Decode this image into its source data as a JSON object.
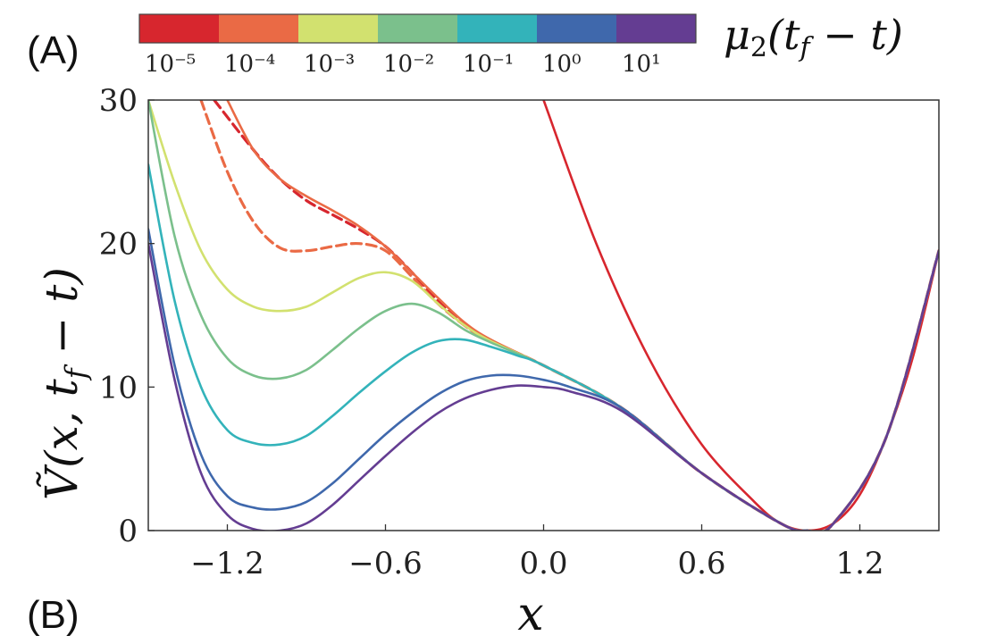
{
  "panel_labels": {
    "top": "(A)",
    "bottom": "(B)"
  },
  "colorbar": {
    "label": "μ2(tf − t)",
    "colors": [
      "#d7262e",
      "#ea6a45",
      "#d2e16f",
      "#7bc08c",
      "#33b3ba",
      "#3f68ac",
      "#643d92"
    ],
    "tick_labels": [
      "10⁻⁵",
      "10⁻⁴",
      "10⁻³",
      "10⁻²",
      "10⁻¹",
      "10⁰",
      "10¹"
    ]
  },
  "chart_data": {
    "type": "line",
    "title": "",
    "xlabel": "x",
    "ylabel": "Ṽ(x, tf − t)",
    "xlim": [
      -1.5,
      1.5
    ],
    "ylim": [
      0,
      30
    ],
    "xticks": [
      -1.2,
      -0.6,
      0.0,
      0.6,
      1.2
    ],
    "xtick_labels": [
      "−1.2",
      "−0.6",
      "0.0",
      "0.6",
      "1.2"
    ],
    "yticks": [
      0,
      10,
      20,
      30
    ],
    "ytick_labels": [
      "0",
      "10",
      "20",
      "30"
    ],
    "grid": false,
    "series": [
      {
        "name": "10⁻⁵",
        "color": "#d7262e",
        "style": "solid",
        "x": [
          0.0,
          0.2,
          0.4,
          0.6,
          0.8,
          0.9,
          1.0,
          1.1,
          1.2,
          1.3,
          1.4,
          1.5
        ],
        "y": [
          30,
          20,
          12,
          6,
          2,
          0.5,
          0,
          0.5,
          2.5,
          6.5,
          12,
          19.5
        ]
      },
      {
        "name": "10⁻⁵",
        "color": "#d7262e",
        "style": "dashed",
        "x": [
          -1.25,
          -1.1,
          -1.0,
          -0.9,
          -0.8,
          -0.7,
          -0.6,
          -0.5,
          -0.4,
          -0.3,
          -0.2,
          0.0,
          0.3,
          0.6,
          0.9,
          1.0,
          1.1,
          1.3,
          1.5
        ],
        "y": [
          30,
          26.5,
          24.5,
          23,
          22,
          21,
          19.8,
          18,
          16,
          14.3,
          13.2,
          11.5,
          8.5,
          4,
          0.5,
          0,
          0.5,
          6.5,
          19.5
        ]
      },
      {
        "name": "10⁻⁴",
        "color": "#ea6a45",
        "style": "dashed",
        "x": [
          -1.3,
          -1.2,
          -1.1,
          -1.0,
          -0.9,
          -0.8,
          -0.7,
          -0.6,
          -0.5,
          -0.4,
          -0.3,
          -0.2,
          0.0,
          0.3,
          0.6,
          0.9,
          1.0,
          1.1,
          1.3,
          1.5
        ],
        "y": [
          30,
          25,
          21.5,
          19.7,
          19.5,
          19.8,
          20,
          19.5,
          17.7,
          15.8,
          14.3,
          13.2,
          11.5,
          8.5,
          4,
          0.5,
          0,
          0.5,
          6.5,
          19.5
        ]
      },
      {
        "name": "10⁻⁴",
        "color": "#ea6a45",
        "style": "solid",
        "x": [
          -1.2,
          -1.1,
          -1.0,
          -0.9,
          -0.8,
          -0.7,
          -0.6,
          -0.5,
          -0.4,
          -0.3,
          -0.2,
          0.0,
          0.3,
          0.6,
          0.9,
          1.0,
          1.1,
          1.3,
          1.5
        ],
        "y": [
          30,
          26.5,
          24.5,
          23.3,
          22.3,
          21.2,
          19.8,
          18,
          16.2,
          14.5,
          13.3,
          11.5,
          8.5,
          4,
          0.5,
          0,
          0.5,
          6.5,
          19.5
        ]
      },
      {
        "name": "10⁻³",
        "color": "#d2e16f",
        "style": "solid",
        "x": [
          -1.5,
          -1.4,
          -1.3,
          -1.2,
          -1.1,
          -1.0,
          -0.9,
          -0.8,
          -0.7,
          -0.6,
          -0.5,
          -0.4,
          -0.3,
          -0.2,
          0.0,
          0.3,
          0.6,
          0.9,
          1.0,
          1.1,
          1.3,
          1.5
        ],
        "y": [
          30,
          24.2,
          19.5,
          16.8,
          15.6,
          15.3,
          15.6,
          16.6,
          17.6,
          18,
          17.4,
          15.8,
          14.3,
          13.2,
          11.5,
          8.5,
          4,
          0.5,
          0,
          0.5,
          6.5,
          19.5
        ]
      },
      {
        "name": "10⁻²",
        "color": "#7bc08c",
        "style": "solid",
        "x": [
          -1.5,
          -1.4,
          -1.3,
          -1.2,
          -1.1,
          -1.0,
          -0.9,
          -0.8,
          -0.7,
          -0.6,
          -0.5,
          -0.4,
          -0.3,
          -0.2,
          0.0,
          0.3,
          0.6,
          0.9,
          1.0,
          1.1,
          1.3,
          1.5
        ],
        "y": [
          30,
          20.5,
          15,
          12,
          10.8,
          10.6,
          11.2,
          12.6,
          14.1,
          15.3,
          15.8,
          15.2,
          14,
          13.1,
          11.5,
          8.5,
          4,
          0.5,
          0,
          0.5,
          6.5,
          19.5
        ]
      },
      {
        "name": "10⁻¹",
        "color": "#33b3ba",
        "style": "solid",
        "x": [
          -1.5,
          -1.4,
          -1.3,
          -1.2,
          -1.1,
          -1.0,
          -0.9,
          -0.8,
          -0.7,
          -0.6,
          -0.5,
          -0.4,
          -0.3,
          -0.2,
          -0.1,
          0.0,
          0.3,
          0.6,
          0.9,
          1.0,
          1.1,
          1.3,
          1.5
        ],
        "y": [
          25.5,
          16,
          10,
          7,
          6.1,
          6,
          6.6,
          8,
          9.6,
          11.1,
          12.4,
          13.2,
          13.3,
          12.8,
          12.2,
          11.5,
          8.5,
          4,
          0.5,
          0,
          0.5,
          6.5,
          19.5
        ]
      },
      {
        "name": "10⁰",
        "color": "#3f68ac",
        "style": "solid",
        "x": [
          -1.5,
          -1.4,
          -1.3,
          -1.2,
          -1.1,
          -1.0,
          -0.9,
          -0.8,
          -0.7,
          -0.6,
          -0.5,
          -0.4,
          -0.3,
          -0.2,
          -0.1,
          0.0,
          0.1,
          0.3,
          0.6,
          0.9,
          1.0,
          1.1,
          1.3,
          1.5
        ],
        "y": [
          21,
          11.5,
          5.3,
          2.4,
          1.6,
          1.5,
          2,
          3.3,
          5,
          6.7,
          8.2,
          9.5,
          10.4,
          10.8,
          10.8,
          10.5,
          10,
          8.5,
          4,
          0.5,
          0,
          0.5,
          6.5,
          19.5
        ]
      },
      {
        "name": "10¹",
        "color": "#643d92",
        "style": "solid",
        "x": [
          -1.5,
          -1.4,
          -1.3,
          -1.2,
          -1.1,
          -1.0,
          -0.9,
          -0.8,
          -0.7,
          -0.6,
          -0.5,
          -0.4,
          -0.3,
          -0.2,
          -0.1,
          0.0,
          0.1,
          0.3,
          0.6,
          0.9,
          1.0,
          1.1,
          1.3,
          1.5
        ],
        "y": [
          20,
          10.5,
          4,
          1.1,
          0.1,
          0,
          0.5,
          1.8,
          3.5,
          5.2,
          6.8,
          8.2,
          9.2,
          9.8,
          10.1,
          10,
          9.7,
          8.3,
          4,
          0.5,
          0,
          0.5,
          6.5,
          19.5
        ]
      }
    ]
  }
}
